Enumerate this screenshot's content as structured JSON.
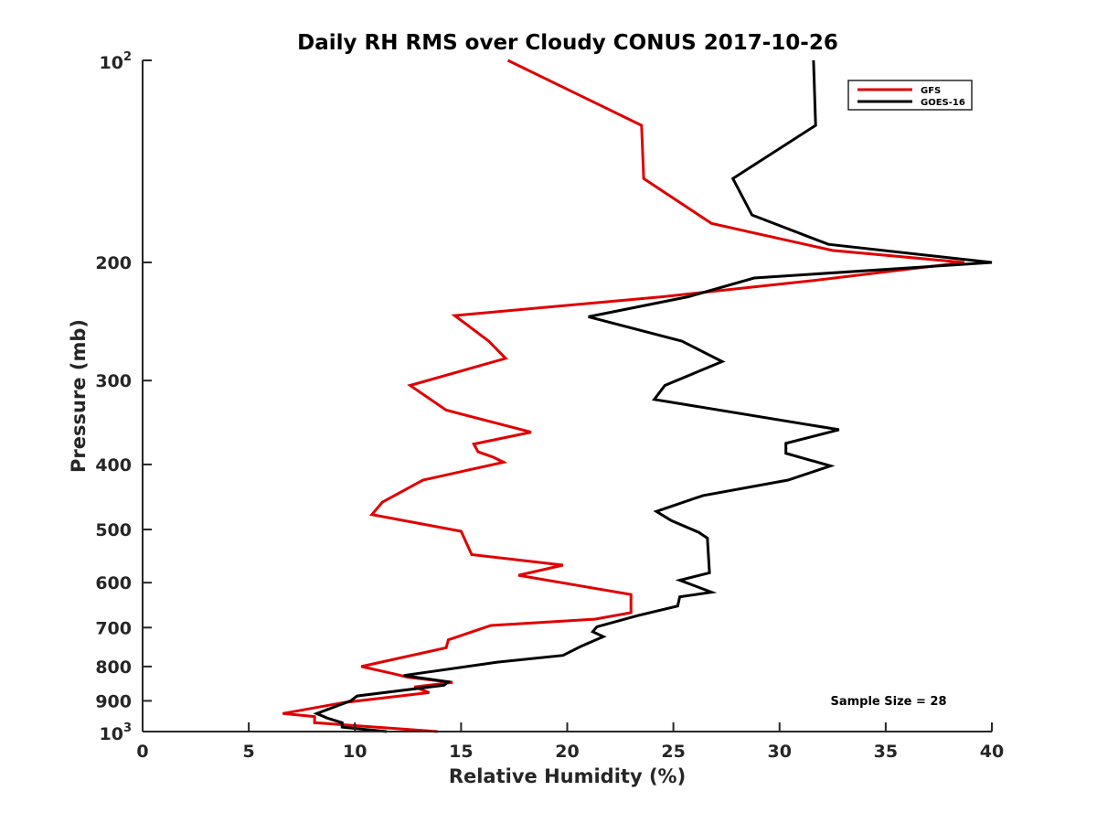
{
  "chart_data": {
    "type": "line",
    "title": "Daily RH RMS over Cloudy CONUS 2017-10-26",
    "xlabel": "Relative Humidity (%)",
    "ylabel": "Pressure (mb)",
    "xlim": [
      0,
      40
    ],
    "ylim": [
      100,
      1000
    ],
    "y_scale": "log",
    "y_reversed": true,
    "grid": false,
    "legend_position": "top-right",
    "x_ticks": [
      {
        "value": 0,
        "label": "0"
      },
      {
        "value": 5,
        "label": "5"
      },
      {
        "value": 10,
        "label": "10"
      },
      {
        "value": 15,
        "label": "15"
      },
      {
        "value": 20,
        "label": "20"
      },
      {
        "value": 25,
        "label": "25"
      },
      {
        "value": 30,
        "label": "30"
      },
      {
        "value": 35,
        "label": "35"
      },
      {
        "value": 40,
        "label": "40"
      }
    ],
    "y_ticks": [
      {
        "value": 100,
        "base": "10",
        "exp": "2"
      },
      {
        "value": 200,
        "label": "200"
      },
      {
        "value": 300,
        "label": "300"
      },
      {
        "value": 400,
        "label": "400"
      },
      {
        "value": 500,
        "label": "500"
      },
      {
        "value": 600,
        "label": "600"
      },
      {
        "value": 700,
        "label": "700"
      },
      {
        "value": 800,
        "label": "800"
      },
      {
        "value": 900,
        "label": "900"
      },
      {
        "value": 1000,
        "base": "10",
        "exp": "3"
      }
    ],
    "annotation": "Sample Size = 28",
    "series": [
      {
        "name": "GFS",
        "color": "#e00000",
        "points": [
          [
            17.2,
            100
          ],
          [
            23.5,
            125
          ],
          [
            23.6,
            150
          ],
          [
            26.8,
            175
          ],
          [
            32.5,
            192
          ],
          [
            38.7,
            200
          ],
          [
            31.5,
            213
          ],
          [
            24.5,
            225
          ],
          [
            14.7,
            240
          ],
          [
            16.3,
            262
          ],
          [
            17.1,
            278
          ],
          [
            12.6,
            305
          ],
          [
            14.3,
            332
          ],
          [
            18.3,
            358
          ],
          [
            15.6,
            373
          ],
          [
            15.8,
            383
          ],
          [
            16.5,
            390
          ],
          [
            17.0,
            397
          ],
          [
            13.2,
            422
          ],
          [
            11.3,
            455
          ],
          [
            10.8,
            475
          ],
          [
            15.0,
            503
          ],
          [
            15.5,
            545
          ],
          [
            19.8,
            565
          ],
          [
            17.7,
            585
          ],
          [
            23.0,
            625
          ],
          [
            23.0,
            665
          ],
          [
            21.3,
            680
          ],
          [
            16.4,
            695
          ],
          [
            14.4,
            730
          ],
          [
            14.3,
            750
          ],
          [
            10.3,
            800
          ],
          [
            11.8,
            820
          ],
          [
            12.5,
            830
          ],
          [
            14.6,
            845
          ],
          [
            12.8,
            858
          ],
          [
            13.5,
            875
          ],
          [
            9.5,
            905
          ],
          [
            6.6,
            940
          ],
          [
            8.1,
            950
          ],
          [
            8.1,
            970
          ],
          [
            13.9,
            1000
          ]
        ]
      },
      {
        "name": "GOES-16",
        "color": "#000000",
        "points": [
          [
            31.6,
            100
          ],
          [
            31.7,
            125
          ],
          [
            27.8,
            150
          ],
          [
            28.7,
            170
          ],
          [
            32.3,
            188
          ],
          [
            40.0,
            200
          ],
          [
            28.8,
            211
          ],
          [
            25.7,
            225
          ],
          [
            21.0,
            241
          ],
          [
            25.4,
            262
          ],
          [
            27.3,
            281
          ],
          [
            24.6,
            305
          ],
          [
            24.1,
            320
          ],
          [
            32.8,
            355
          ],
          [
            30.3,
            372
          ],
          [
            30.3,
            385
          ],
          [
            32.4,
            402
          ],
          [
            30.4,
            422
          ],
          [
            26.4,
            445
          ],
          [
            24.2,
            470
          ],
          [
            24.9,
            485
          ],
          [
            26.2,
            505
          ],
          [
            26.6,
            515
          ],
          [
            26.7,
            580
          ],
          [
            25.3,
            595
          ],
          [
            26.8,
            620
          ],
          [
            25.3,
            630
          ],
          [
            25.2,
            650
          ],
          [
            23.3,
            672
          ],
          [
            21.4,
            698
          ],
          [
            21.2,
            710
          ],
          [
            21.7,
            722
          ],
          [
            20.7,
            745
          ],
          [
            19.8,
            770
          ],
          [
            16.7,
            788
          ],
          [
            12.3,
            825
          ],
          [
            14.4,
            843
          ],
          [
            14.2,
            853
          ],
          [
            10.1,
            885
          ],
          [
            9.8,
            900
          ],
          [
            8.2,
            940
          ],
          [
            8.7,
            955
          ],
          [
            9.4,
            970
          ],
          [
            9.4,
            985
          ],
          [
            11.5,
            1000
          ]
        ]
      }
    ]
  }
}
